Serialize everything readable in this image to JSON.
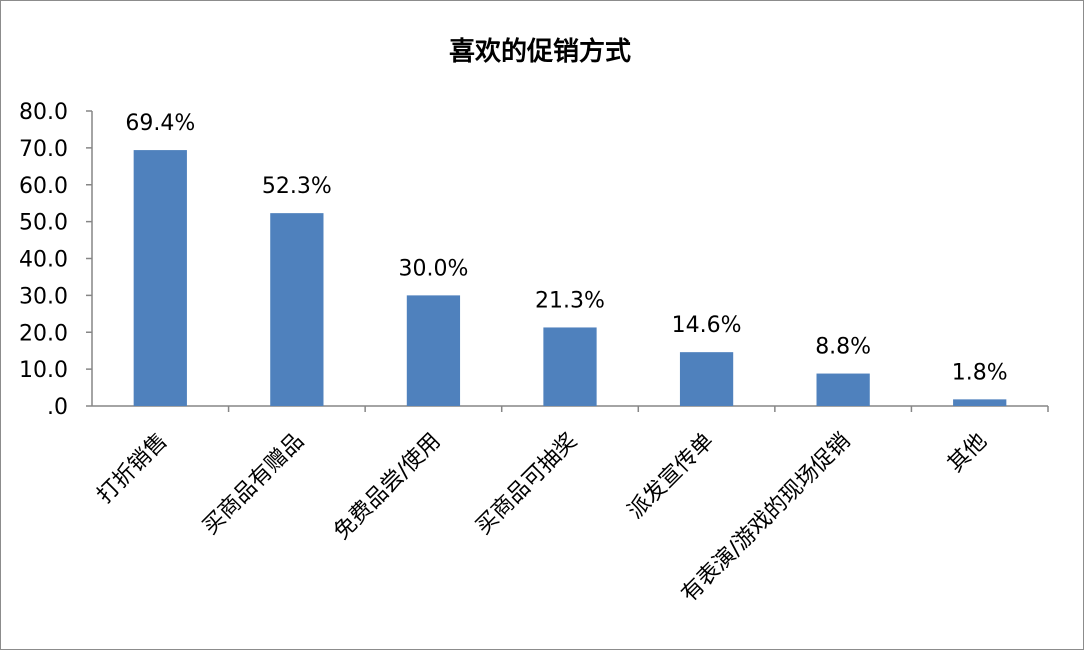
{
  "chart_data": {
    "type": "bar",
    "title": "喜欢的促销方式",
    "xlabel": "",
    "ylabel": "",
    "categories": [
      "打折销售",
      "买商品有赠品",
      "免费品尝/使用",
      "买商品可抽奖",
      "派发宣传单",
      "有表演/游戏的现场促销",
      "其他"
    ],
    "values": [
      69.4,
      52.3,
      30.0,
      21.3,
      14.6,
      8.8,
      1.8
    ],
    "data_labels": [
      "69.4%",
      "52.3%",
      "30.0%",
      "21.3%",
      "14.6%",
      "8.8%",
      "1.8%"
    ],
    "yticks": [
      ".0",
      "10.0",
      "20.0",
      "30.0",
      "40.0",
      "50.0",
      "60.0",
      "70.0",
      "80.0"
    ],
    "ylim": [
      0,
      80
    ],
    "bar_color": "#4f81bd",
    "grid": false,
    "legend": "none"
  }
}
